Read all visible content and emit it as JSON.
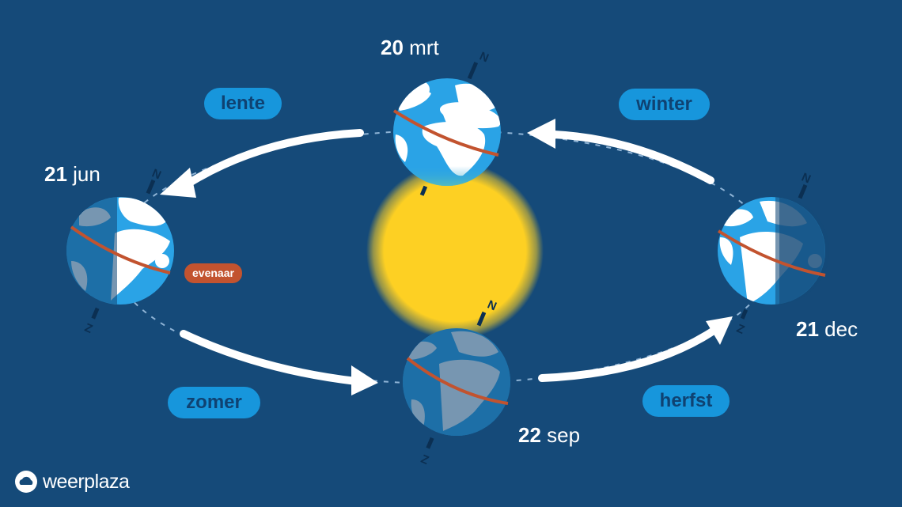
{
  "seasons": {
    "spring": "lente",
    "summer": "zomer",
    "autumn": "herfst",
    "winter": "winter"
  },
  "dates": {
    "mar": {
      "day": "20",
      "month": "mrt"
    },
    "jun": {
      "day": "21",
      "month": "jun"
    },
    "sep": {
      "day": "22",
      "month": "sep"
    },
    "dec": {
      "day": "21",
      "month": "dec"
    }
  },
  "equator_label": "evenaar",
  "pole_label": "N",
  "south_pole_label": "Z",
  "brand": "weerplaza",
  "colors": {
    "background": "#154a79",
    "pill": "#1796dc",
    "pill_text": "#0f4272",
    "ocean": "#2aa3e6",
    "land": "#ffffff",
    "shadow": "rgba(21,74,121,0.58)",
    "equator": "#c2532f",
    "sun": "#fdd023"
  }
}
